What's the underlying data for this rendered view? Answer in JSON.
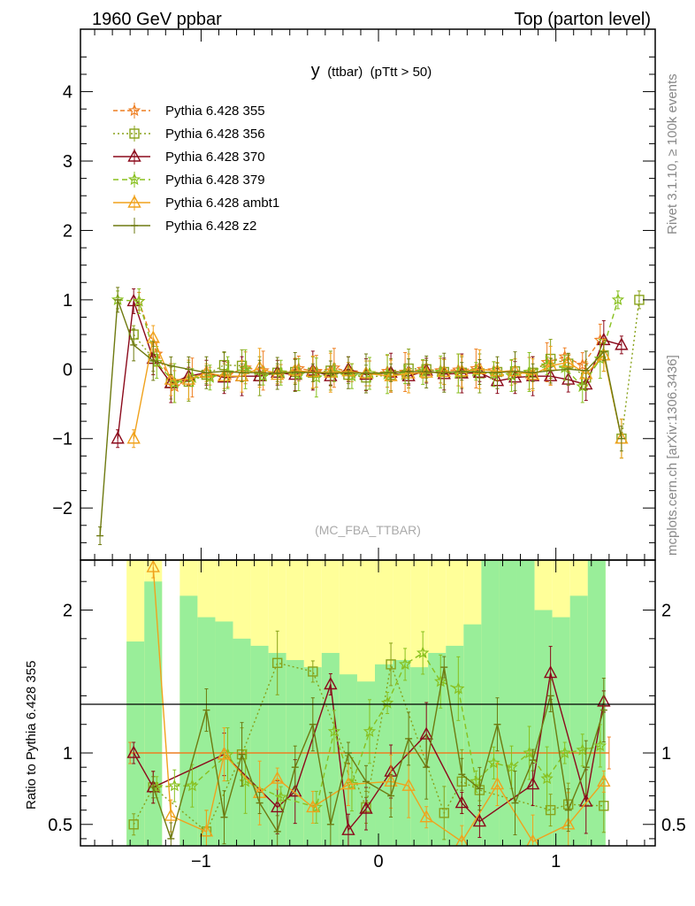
{
  "header": {
    "left": "1960 GeV ppbar",
    "right": "Top (parton level)"
  },
  "side": {
    "top": "Rivet 3.1.10, ≥ 100k events",
    "bottom": "mcplots.cern.ch [arXiv:1306.3436]"
  },
  "plot_title": {
    "main": "y",
    "sub": "(ttbar)",
    "cut": "(pTtt > 50)"
  },
  "watermark": "(MC_FBA_TTBAR)",
  "ratio_ylabel": "Ratio to Pythia 6.428 355",
  "colors": {
    "s355": "#ee7f22",
    "s356": "#88a21a",
    "s370": "#8b0a1b",
    "s379": "#88c01f",
    "ambt1": "#f0a21c",
    "z2": "#6e7a10",
    "band_yellow": "#ffff99",
    "band_green": "#99ee99"
  },
  "chart_data": [
    {
      "type": "line",
      "panel": "main",
      "x_ticks": [
        -1,
        0,
        1
      ],
      "x_tick_labels": [
        "−1",
        "0",
        "1"
      ],
      "xlim": [
        -1.68,
        1.56
      ],
      "ylim": [
        -2.75,
        4.9
      ],
      "y_ticks": [
        -2,
        -1,
        0,
        1,
        2,
        3,
        4
      ],
      "y_tick_labels": [
        "−2",
        "−1",
        "0",
        "1",
        "2",
        "3",
        "4"
      ],
      "legend_position": "top-left",
      "series": [
        {
          "name": "Pythia 6.428 355",
          "color_key": "s355",
          "marker": "star",
          "dash": "5,3",
          "x": [
            -1.35,
            -1.25,
            -1.15,
            -1.05,
            -0.95,
            -0.85,
            -0.75,
            -0.65,
            -0.55,
            -0.45,
            -0.35,
            -0.25,
            -0.15,
            -0.05,
            0.05,
            0.15,
            0.25,
            0.35,
            0.45,
            0.55,
            0.65,
            0.75,
            0.85,
            0.95,
            1.05,
            1.15,
            1.25
          ],
          "y": [
            0.98,
            0.22,
            -0.25,
            -0.12,
            -0.1,
            -0.08,
            0.02,
            -0.02,
            -0.06,
            0.01,
            -0.03,
            0.02,
            -0.05,
            -0.06,
            -0.03,
            -0.04,
            0.0,
            -0.02,
            -0.01,
            0.01,
            -0.02,
            -0.05,
            -0.06,
            0.1,
            0.18,
            0.06,
            0.42
          ]
        },
        {
          "name": "Pythia 6.428 356",
          "color_key": "s356",
          "marker": "square",
          "dash": "2,3",
          "x": [
            -1.38,
            -1.27,
            -1.17,
            -1.07,
            -0.97,
            -0.87,
            -0.77,
            -0.67,
            -0.57,
            -0.47,
            -0.37,
            -0.27,
            -0.17,
            -0.07,
            0.07,
            0.17,
            0.27,
            0.37,
            0.47,
            0.57,
            0.67,
            0.77,
            0.87,
            0.97,
            1.07,
            1.17,
            1.27,
            1.37,
            1.47
          ],
          "y": [
            0.5,
            0.15,
            -0.2,
            -0.18,
            -0.08,
            0.06,
            0.05,
            -0.1,
            -0.05,
            -0.04,
            -0.05,
            -0.02,
            -0.08,
            -0.12,
            -0.08,
            0.01,
            0.0,
            -0.04,
            -0.05,
            -0.06,
            -0.04,
            -0.03,
            -0.05,
            0.15,
            0.08,
            -0.12,
            0.2,
            -1.0,
            1.0
          ]
        },
        {
          "name": "Pythia 6.428 370",
          "color_key": "s370",
          "marker": "triangle",
          "dash": "",
          "x": [
            -1.47,
            -1.38,
            -1.27,
            -1.17,
            -1.07,
            -0.97,
            -0.87,
            -0.77,
            -0.67,
            -0.57,
            -0.47,
            -0.37,
            -0.27,
            -0.17,
            -0.07,
            0.07,
            0.17,
            0.27,
            0.37,
            0.47,
            0.57,
            0.67,
            0.77,
            0.87,
            0.97,
            1.07,
            1.17,
            1.27,
            1.37
          ],
          "y": [
            -1.0,
            0.98,
            0.15,
            -0.2,
            -0.1,
            -0.05,
            -0.12,
            -0.1,
            -0.1,
            -0.05,
            -0.08,
            -0.02,
            -0.1,
            0.0,
            -0.08,
            -0.05,
            -0.1,
            -0.02,
            -0.07,
            -0.06,
            -0.05,
            -0.17,
            -0.12,
            -0.1,
            -0.1,
            -0.15,
            -0.22,
            0.42,
            0.35
          ]
        },
        {
          "name": "Pythia 6.428 379",
          "color_key": "s379",
          "marker": "star",
          "dash": "6,4",
          "x": [
            -1.47,
            -1.35,
            -1.25,
            -1.15,
            -1.05,
            -0.95,
            -0.85,
            -0.75,
            -0.65,
            -0.55,
            -0.45,
            -0.35,
            -0.25,
            -0.15,
            -0.05,
            0.05,
            0.15,
            0.25,
            0.35,
            0.45,
            0.55,
            0.65,
            0.75,
            0.85,
            0.95,
            1.05,
            1.15,
            1.25,
            1.35
          ],
          "y": [
            1.0,
            0.98,
            0.1,
            -0.2,
            -0.12,
            -0.12,
            -0.05,
            0.0,
            -0.1,
            -0.05,
            -0.08,
            -0.12,
            -0.05,
            -0.1,
            -0.06,
            -0.07,
            -0.08,
            -0.04,
            -0.04,
            -0.06,
            -0.03,
            -0.07,
            -0.09,
            -0.04,
            0.05,
            0.02,
            -0.25,
            0.15,
            1.0
          ]
        },
        {
          "name": "Pythia 6.428 ambt1",
          "color_key": "ambt1",
          "marker": "triangle",
          "dash": "",
          "x": [
            -1.38,
            -1.27,
            -1.17,
            -1.07,
            -0.97,
            -0.87,
            -0.77,
            -0.67,
            -0.57,
            -0.47,
            -0.37,
            -0.27,
            -0.17,
            -0.07,
            0.07,
            0.17,
            0.27,
            0.37,
            0.47,
            0.57,
            0.67,
            0.77,
            0.87,
            0.97,
            1.07,
            1.17,
            1.27,
            1.37
          ],
          "y": [
            -1.0,
            0.45,
            -0.15,
            -0.15,
            -0.05,
            -0.1,
            -0.1,
            0.02,
            -0.08,
            -0.02,
            -0.04,
            -0.05,
            -0.03,
            -0.06,
            -0.1,
            -0.06,
            -0.05,
            -0.04,
            -0.03,
            0.0,
            -0.03,
            -0.03,
            -0.08,
            0.05,
            0.1,
            -0.07,
            0.2,
            -1.0
          ]
        },
        {
          "name": "Pythia 6.428 z2",
          "color_key": "z2",
          "marker": "bar",
          "dash": "",
          "x": [
            -1.57,
            -1.47,
            -1.38,
            -1.27,
            -1.17,
            -1.07,
            -0.97,
            -0.87,
            -0.77,
            -0.67,
            -0.57,
            -0.47,
            -0.37,
            -0.27,
            -0.17,
            -0.07,
            0.07,
            0.17,
            0.27,
            0.37,
            0.47,
            0.57,
            0.67,
            0.77,
            0.87,
            0.97,
            1.07,
            1.17,
            1.27,
            1.37
          ],
          "y": [
            -2.4,
            1.0,
            0.35,
            0.12,
            0.05,
            0.0,
            -0.05,
            -0.03,
            -0.05,
            -0.05,
            -0.06,
            -0.04,
            -0.05,
            -0.06,
            -0.05,
            -0.06,
            -0.05,
            -0.03,
            -0.04,
            -0.05,
            -0.03,
            -0.04,
            -0.05,
            -0.03,
            -0.05,
            -0.02,
            0.0,
            -0.02,
            0.25,
            -1.0
          ]
        }
      ]
    },
    {
      "type": "line",
      "panel": "ratio",
      "ylabel": "Ratio to Pythia 6.428 355",
      "xlim": [
        -1.68,
        1.56
      ],
      "ylim": [
        0.35,
        2.35
      ],
      "y_ticks": [
        0.5,
        1,
        2
      ],
      "y_tick_labels": [
        "0.5",
        "1",
        "2"
      ],
      "reference_line": 1,
      "band_x": [
        -1.42,
        -1.32,
        -1.22,
        -1.12,
        -1.02,
        -0.92,
        -0.82,
        -0.72,
        -0.62,
        -0.52,
        -0.42,
        -0.32,
        -0.22,
        -0.12,
        -0.02,
        0.08,
        0.18,
        0.28,
        0.38,
        0.48,
        0.58,
        0.68,
        0.78,
        0.88,
        0.98,
        1.08,
        1.18,
        1.28
      ],
      "band_yellow": [
        [
          0.35,
          2.35
        ],
        [
          0.35,
          2.35
        ],
        [
          0.35,
          0.35
        ],
        [
          0.35,
          2.35
        ],
        [
          0.35,
          2.35
        ],
        [
          0.35,
          2.35
        ],
        [
          0.35,
          2.35
        ],
        [
          0.35,
          2.35
        ],
        [
          0.35,
          2.35
        ],
        [
          0.35,
          2.35
        ],
        [
          0.35,
          2.35
        ],
        [
          0.35,
          2.35
        ],
        [
          0.35,
          2.35
        ],
        [
          0.35,
          2.35
        ],
        [
          0.35,
          2.35
        ],
        [
          0.35,
          2.35
        ],
        [
          0.35,
          2.35
        ],
        [
          0.35,
          2.35
        ],
        [
          0.35,
          2.35
        ],
        [
          0.35,
          2.35
        ],
        [
          0.35,
          2.35
        ],
        [
          0.35,
          2.35
        ],
        [
          0.35,
          2.35
        ],
        [
          0.35,
          2.35
        ],
        [
          0.35,
          2.35
        ],
        [
          0.35,
          2.35
        ],
        [
          0.35,
          2.35
        ]
      ],
      "band_green": [
        [
          0.35,
          1.78
        ],
        [
          0.35,
          2.2
        ],
        [
          0.35,
          0.35
        ],
        [
          0.35,
          2.1
        ],
        [
          0.35,
          1.95
        ],
        [
          0.35,
          1.92
        ],
        [
          0.35,
          1.8
        ],
        [
          0.35,
          1.75
        ],
        [
          0.35,
          1.7
        ],
        [
          0.35,
          1.65
        ],
        [
          0.35,
          1.6
        ],
        [
          0.35,
          1.7
        ],
        [
          0.35,
          1.55
        ],
        [
          0.35,
          1.5
        ],
        [
          0.35,
          1.62
        ],
        [
          0.35,
          1.65
        ],
        [
          0.35,
          1.6
        ],
        [
          0.35,
          1.7
        ],
        [
          0.35,
          1.75
        ],
        [
          0.35,
          1.9
        ],
        [
          0.35,
          2.35
        ],
        [
          0.35,
          2.35
        ],
        [
          0.35,
          2.35
        ],
        [
          0.35,
          2.0
        ],
        [
          0.35,
          1.95
        ],
        [
          0.35,
          2.1
        ],
        [
          0.35,
          2.35
        ]
      ],
      "series": [
        {
          "name": "Pythia 6.428 355",
          "color_key": "s355",
          "marker": "none",
          "dash": "",
          "x": [
            -1.4,
            1.3
          ],
          "y": [
            1,
            1
          ]
        },
        {
          "name": "Pythia 6.428 356",
          "color_key": "s356",
          "marker": "square",
          "dash": "2,3",
          "x": [
            -1.38,
            -1.27,
            -0.97,
            -0.77,
            -0.57,
            -0.37,
            -0.07,
            0.07,
            0.37,
            0.47,
            0.57,
            0.97,
            1.07,
            1.27
          ],
          "y": [
            0.5,
            0.76,
            0.45,
            0.99,
            1.63,
            1.57,
            0.62,
            1.62,
            0.58,
            0.8,
            0.74,
            0.6,
            0.64,
            0.63
          ]
        },
        {
          "name": "Pythia 6.428 370",
          "color_key": "s370",
          "marker": "triangle",
          "dash": "",
          "x": [
            -1.38,
            -1.27,
            -0.87,
            -0.57,
            -0.47,
            -0.27,
            -0.17,
            -0.07,
            0.07,
            0.27,
            0.47,
            0.57,
            0.87,
            0.97,
            1.17,
            1.27
          ],
          "y": [
            1.0,
            0.76,
            0.99,
            0.62,
            0.73,
            1.48,
            0.46,
            0.61,
            0.87,
            1.13,
            0.65,
            0.52,
            0.78,
            1.56,
            0.66,
            1.36
          ]
        },
        {
          "name": "Pythia 6.428 379",
          "color_key": "s379",
          "marker": "star",
          "dash": "6,4",
          "x": [
            -1.25,
            -1.15,
            -1.05,
            -0.85,
            -0.75,
            -0.55,
            -0.35,
            -0.25,
            -0.15,
            -0.05,
            0.05,
            0.15,
            0.25,
            0.35,
            0.45,
            0.55,
            0.65,
            0.75,
            0.85,
            0.95,
            1.05,
            1.15,
            1.25
          ],
          "y": [
            0.76,
            0.77,
            0.77,
            0.99,
            0.8,
            0.69,
            0.62,
            1.15,
            0.78,
            1.15,
            1.35,
            1.62,
            1.7,
            1.5,
            1.45,
            0.8,
            0.93,
            0.9,
            1.0,
            0.82,
            1.0,
            1.02,
            1.05
          ]
        },
        {
          "name": "Pythia 6.428 ambt1",
          "color_key": "ambt1",
          "marker": "triangle",
          "dash": "",
          "x": [
            -1.27,
            -1.17,
            -0.97,
            -0.87,
            -0.67,
            -0.57,
            -0.37,
            -0.17,
            0.07,
            0.17,
            0.27,
            0.47,
            0.67,
            0.87,
            1.07,
            1.27
          ],
          "y": [
            2.3,
            0.56,
            0.45,
            0.99,
            0.72,
            0.82,
            0.62,
            0.78,
            0.8,
            0.77,
            0.55,
            0.38,
            0.78,
            0.38,
            0.5,
            0.8
          ]
        },
        {
          "name": "Pythia 6.428 z2",
          "color_key": "z2",
          "marker": "bar",
          "dash": "",
          "x": [
            -1.27,
            -1.17,
            -0.97,
            -0.87,
            -0.77,
            -0.67,
            -0.57,
            -0.47,
            -0.37,
            -0.27,
            -0.17,
            -0.07,
            0.07,
            0.17,
            0.27,
            0.37,
            0.47,
            0.57,
            0.67,
            0.77,
            0.87,
            0.97,
            1.07,
            1.17,
            1.27
          ],
          "y": [
            0.76,
            0.4,
            1.3,
            0.55,
            0.99,
            0.65,
            0.45,
            0.9,
            1.2,
            0.5,
            1.0,
            0.8,
            0.7,
            1.1,
            0.9,
            1.6,
            0.85,
            0.75,
            1.2,
            0.65,
            0.95,
            1.4,
            0.6,
            0.9,
            1.3
          ]
        }
      ]
    }
  ]
}
